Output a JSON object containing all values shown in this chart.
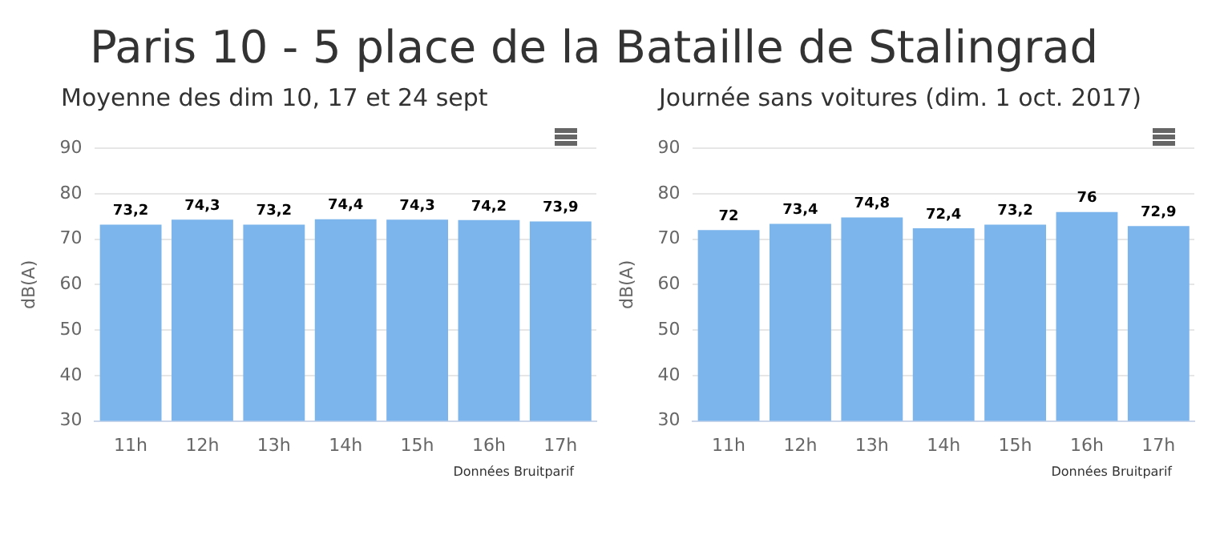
{
  "chart_data": [
    {
      "type": "bar",
      "title": "Paris 10 - 5 place de la Bataille de Stalingrad",
      "subtitle": "Moyenne des dim 10, 17 et 24 sept",
      "ylabel": "dB(A)",
      "categories": [
        "11h",
        "12h",
        "13h",
        "14h",
        "15h",
        "16h",
        "17h"
      ],
      "values": [
        73.2,
        74.3,
        73.2,
        74.4,
        74.3,
        74.2,
        73.9
      ],
      "value_labels": [
        "73,2",
        "74,3",
        "73,2",
        "74,4",
        "74,3",
        "74,2",
        "73,9"
      ],
      "color": "#7cb5ec",
      "ylim": [
        30,
        90
      ],
      "yticks": [
        30,
        40,
        50,
        60,
        70,
        80,
        90
      ],
      "grid": "y",
      "legend": false,
      "annotations": [
        "Données Bruitparif"
      ]
    },
    {
      "type": "bar",
      "subtitle": "Journée sans voitures (dim. 1 oct. 2017)",
      "ylabel": "dB(A)",
      "categories": [
        "11h",
        "12h",
        "13h",
        "14h",
        "15h",
        "16h",
        "17h"
      ],
      "values": [
        72,
        73.4,
        74.8,
        72.4,
        73.2,
        76,
        72.9
      ],
      "value_labels": [
        "72",
        "73,4",
        "74,8",
        "72,4",
        "73,2",
        "76",
        "72,9"
      ],
      "color": "#7cb5ec",
      "ylim": [
        30,
        90
      ],
      "yticks": [
        30,
        40,
        50,
        60,
        70,
        80,
        90
      ],
      "grid": "y",
      "legend": false,
      "annotations": [
        "Données Bruitparif"
      ]
    }
  ]
}
